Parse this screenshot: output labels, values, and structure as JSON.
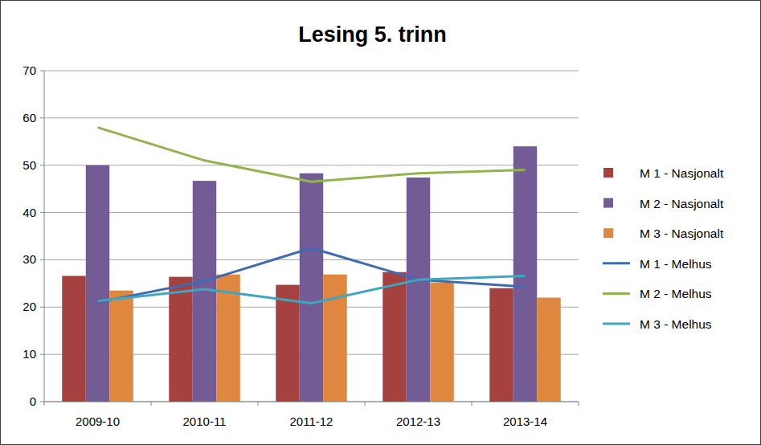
{
  "chart_data": {
    "type": "bar",
    "title": "Lesing 5. trinn",
    "categories": [
      "2009-10",
      "2010-11",
      "2011-12",
      "2012-13",
      "2013-14"
    ],
    "series": [
      {
        "name": "M 1 - Nasjonalt",
        "type": "bar",
        "color": "#a5423f",
        "values": [
          26.6,
          26.4,
          24.7,
          27.4,
          24.0
        ]
      },
      {
        "name": "M 2 - Nasjonalt",
        "type": "bar",
        "color": "#735b96",
        "values": [
          50.0,
          46.7,
          48.3,
          47.4,
          54.0
        ]
      },
      {
        "name": "M 3 - Nasjonalt",
        "type": "bar",
        "color": "#e0873f",
        "values": [
          23.5,
          26.9,
          26.9,
          25.2,
          22.0
        ]
      },
      {
        "name": "M 1 - Melhus",
        "type": "line",
        "color": "#3f6bb0",
        "values": [
          21.0,
          25.5,
          32.5,
          25.8,
          24.3
        ]
      },
      {
        "name": "M 2 - Melhus",
        "type": "line",
        "color": "#92b44d",
        "values": [
          58.0,
          51.0,
          46.5,
          48.3,
          49.0
        ]
      },
      {
        "name": "M 3 - Melhus",
        "type": "line",
        "color": "#3ea6bf",
        "values": [
          21.3,
          23.8,
          20.8,
          25.8,
          26.6
        ]
      }
    ],
    "ylim": [
      0,
      70
    ],
    "yticks": [
      0,
      10,
      20,
      30,
      40,
      50,
      60,
      70
    ],
    "grid": true,
    "legend": "right"
  }
}
